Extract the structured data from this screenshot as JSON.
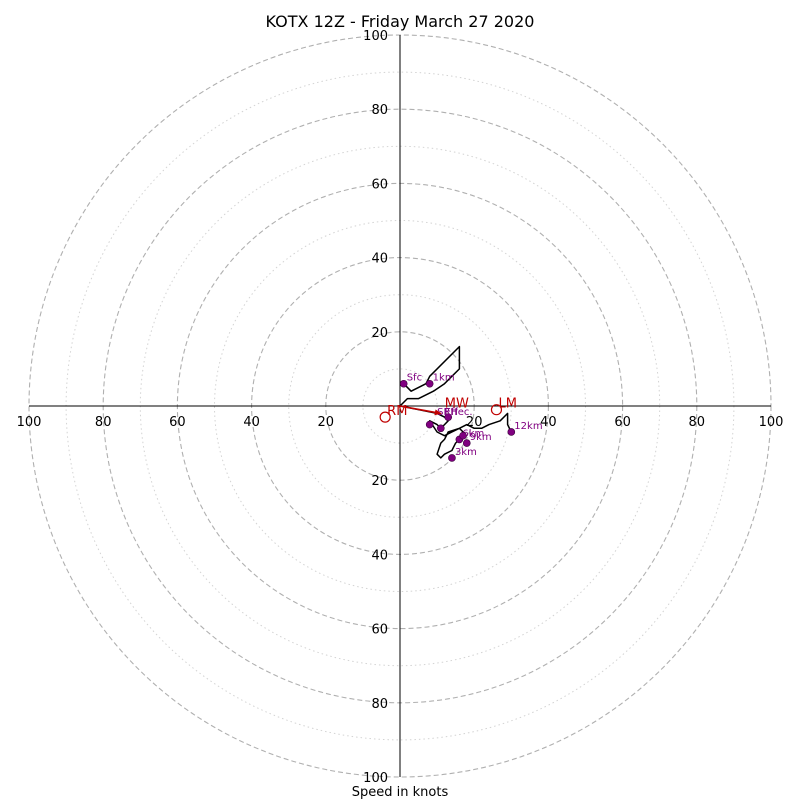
{
  "chart_data": {
    "type": "hodograph",
    "title": "KOTX 12Z - Friday March 27 2020",
    "xlabel": "Speed in knots",
    "range": [
      -100,
      100
    ],
    "rings_major": [
      20,
      40,
      60,
      80,
      100
    ],
    "rings_minor": [
      10,
      30,
      50,
      70,
      90
    ],
    "x_tick_labels": [
      "100",
      "80",
      "60",
      "40",
      "20",
      "20",
      "40",
      "60",
      "80",
      "100"
    ],
    "y_tick_labels": [
      "100",
      "80",
      "60",
      "40",
      "20",
      "20",
      "40",
      "60",
      "80",
      "100"
    ],
    "grid": true,
    "line_color": "#000000",
    "height_marker_color": "#800080",
    "motion_color": "#c00000",
    "profile": [
      [
        1,
        6
      ],
      [
        3,
        4
      ],
      [
        5,
        5
      ],
      [
        7,
        6
      ],
      [
        8,
        8
      ],
      [
        16,
        16
      ],
      [
        16,
        10
      ],
      [
        14,
        8
      ],
      [
        12,
        6
      ],
      [
        9,
        4
      ],
      [
        5,
        2
      ],
      [
        2,
        2
      ],
      [
        0,
        0
      ],
      [
        5,
        -1
      ],
      [
        10,
        -2
      ],
      [
        12,
        -3
      ],
      [
        13,
        -4
      ],
      [
        12,
        -5
      ],
      [
        11,
        -6
      ],
      [
        10,
        -5
      ],
      [
        8,
        -4
      ],
      [
        10,
        -7
      ],
      [
        12,
        -8
      ],
      [
        14,
        -7
      ],
      [
        16,
        -6
      ],
      [
        17,
        -7
      ],
      [
        16,
        -9
      ],
      [
        15,
        -10
      ],
      [
        14,
        -12
      ],
      [
        12,
        -13
      ],
      [
        11,
        -14
      ],
      [
        10,
        -13
      ],
      [
        11,
        -10
      ],
      [
        12,
        -9
      ],
      [
        13,
        -7
      ],
      [
        16,
        -6
      ],
      [
        18,
        -5
      ],
      [
        20,
        -6
      ],
      [
        22,
        -6
      ],
      [
        24,
        -5
      ],
      [
        27,
        -4
      ],
      [
        29,
        -2
      ],
      [
        29,
        -5
      ],
      [
        30,
        -7
      ]
    ],
    "height_markers": [
      {
        "label": "Sfc",
        "u": 1,
        "v": 6
      },
      {
        "label": "1km",
        "u": 8,
        "v": 6
      },
      {
        "label": "",
        "u": 8,
        "v": -5
      },
      {
        "label": "",
        "u": 11,
        "v": -6
      },
      {
        "label": "",
        "u": 13,
        "v": -3
      },
      {
        "label": "6km",
        "u": 16,
        "v": -9
      },
      {
        "label": "",
        "u": 17,
        "v": -8
      },
      {
        "label": "9km",
        "u": 18,
        "v": -10
      },
      {
        "label": "3km",
        "u": 14,
        "v": -14
      },
      {
        "label": "12km",
        "u": 30,
        "v": -7
      }
    ],
    "motions": [
      {
        "label": "RM",
        "u": -4,
        "v": -3
      },
      {
        "label": "LM",
        "u": 26,
        "v": -1
      },
      {
        "label": "MW",
        "u": 11,
        "v": -2
      }
    ],
    "extra_text": [
      {
        "label": "Effec.",
        "u": 12,
        "v": -3
      },
      {
        "label": "SRH",
        "u": 10,
        "v": -3
      }
    ]
  }
}
